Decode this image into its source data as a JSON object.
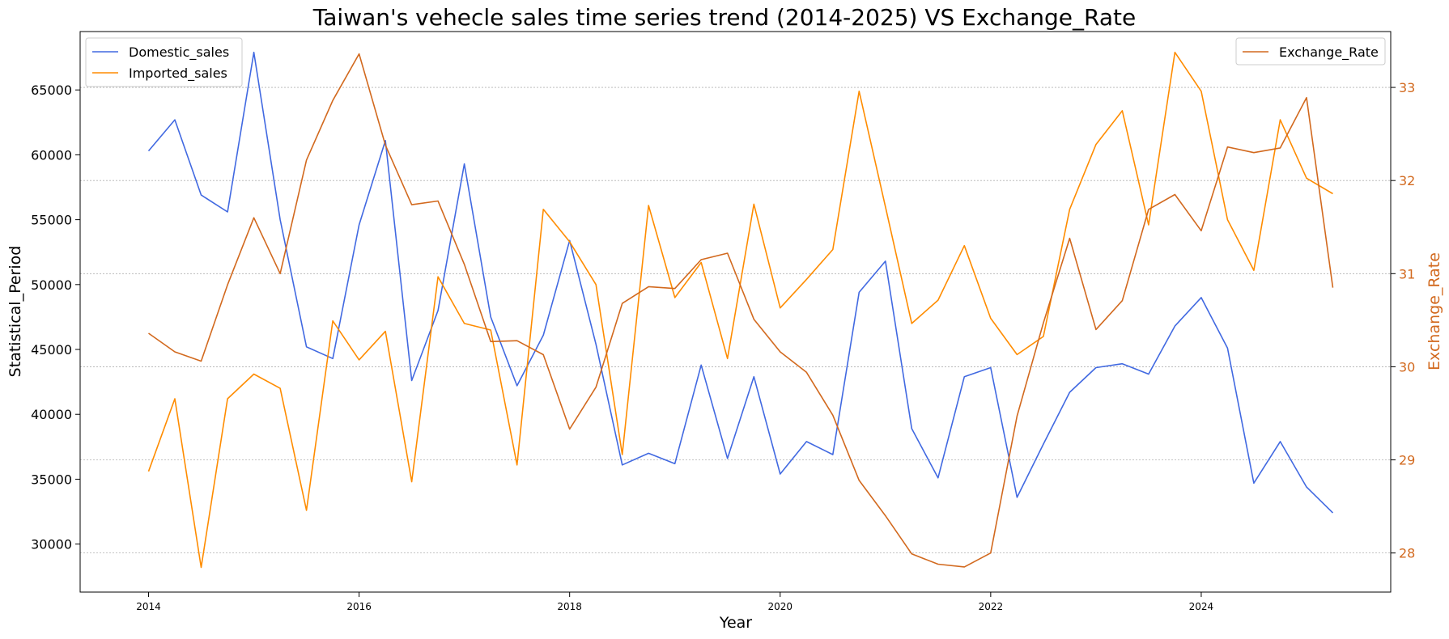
{
  "chart_data": {
    "type": "line",
    "title": "Taiwan's vehecle sales time series trend (2014-2025) VS Exchange_Rate",
    "xlabel": "Year",
    "ylabel": "Statistical_Period",
    "y2label": "Exchange_Rate",
    "xlim": [
      2013.35,
      2025.8
    ],
    "ylim": [
      26300,
      69500
    ],
    "y2lim": [
      27.58,
      33.6
    ],
    "xticks": [
      "2014",
      "2016",
      "2018",
      "2020",
      "2022",
      "2024"
    ],
    "yticks": [
      "30000",
      "35000",
      "40000",
      "45000",
      "50000",
      "55000",
      "60000",
      "65000"
    ],
    "y2ticks": [
      "28",
      "29",
      "30",
      "31",
      "32",
      "33"
    ],
    "grid": "horizontal dotted (right axis)",
    "legend_left": "top-left",
    "legend_right": "top-right",
    "x": [
      2014.0,
      2014.25,
      2014.5,
      2014.75,
      2015.0,
      2015.25,
      2015.5,
      2015.75,
      2016.0,
      2016.25,
      2016.5,
      2016.75,
      2017.0,
      2017.25,
      2017.5,
      2017.75,
      2018.0,
      2018.25,
      2018.5,
      2018.75,
      2019.0,
      2019.25,
      2019.5,
      2019.75,
      2020.0,
      2020.25,
      2020.5,
      2020.75,
      2021.0,
      2021.25,
      2021.5,
      2021.75,
      2022.0,
      2022.25,
      2022.5,
      2022.75,
      2023.0,
      2023.25,
      2023.5,
      2023.75,
      2024.0,
      2024.25,
      2024.5,
      2024.75,
      2025.0,
      2025.25
    ],
    "series": [
      {
        "name": "Domestic_sales",
        "axis": "left",
        "color": "#4169e1",
        "values": [
          60300,
          62700,
          56900,
          55600,
          67900,
          55000,
          45200,
          44300,
          54600,
          61100,
          42600,
          48000,
          59300,
          47500,
          42200,
          46100,
          53400,
          45400,
          36100,
          37000,
          36200,
          43800,
          36600,
          42900,
          35400,
          37900,
          36900,
          49400,
          51800,
          38900,
          35100,
          42900,
          43600,
          33600,
          37700,
          41700,
          43600,
          43900,
          43100,
          46800,
          49000,
          45100,
          34700,
          37900,
          34400,
          32400
        ]
      },
      {
        "name": "Imported_sales",
        "axis": "left",
        "color": "#ff8c00",
        "values": [
          35600,
          41200,
          28200,
          41200,
          43100,
          42000,
          32600,
          47200,
          44200,
          46400,
          34800,
          50600,
          47000,
          46500,
          36100,
          55800,
          53300,
          50000,
          36900,
          56100,
          49000,
          51700,
          44300,
          56200,
          48200,
          50400,
          52700,
          64900,
          56000,
          47000,
          48800,
          53000,
          47400,
          44600,
          46000,
          55800,
          60800,
          63400,
          54600,
          67900,
          64900,
          55000,
          51100,
          62700,
          58200,
          57000
        ]
      },
      {
        "name": "Exchange_Rate",
        "axis": "right",
        "color": "#d2691e",
        "values": [
          30.36,
          30.16,
          30.06,
          30.88,
          31.6,
          31.0,
          32.22,
          32.86,
          33.36,
          32.38,
          31.74,
          31.78,
          31.1,
          30.27,
          30.28,
          30.13,
          29.33,
          29.78,
          30.68,
          30.86,
          30.84,
          31.15,
          31.22,
          30.51,
          30.16,
          29.94,
          29.48,
          28.78,
          28.4,
          27.99,
          27.88,
          27.85,
          28.0,
          29.47,
          30.47,
          31.38,
          30.4,
          30.71,
          31.69,
          31.85,
          31.46,
          32.36,
          32.3,
          32.35,
          32.89,
          30.85
        ]
      }
    ]
  }
}
